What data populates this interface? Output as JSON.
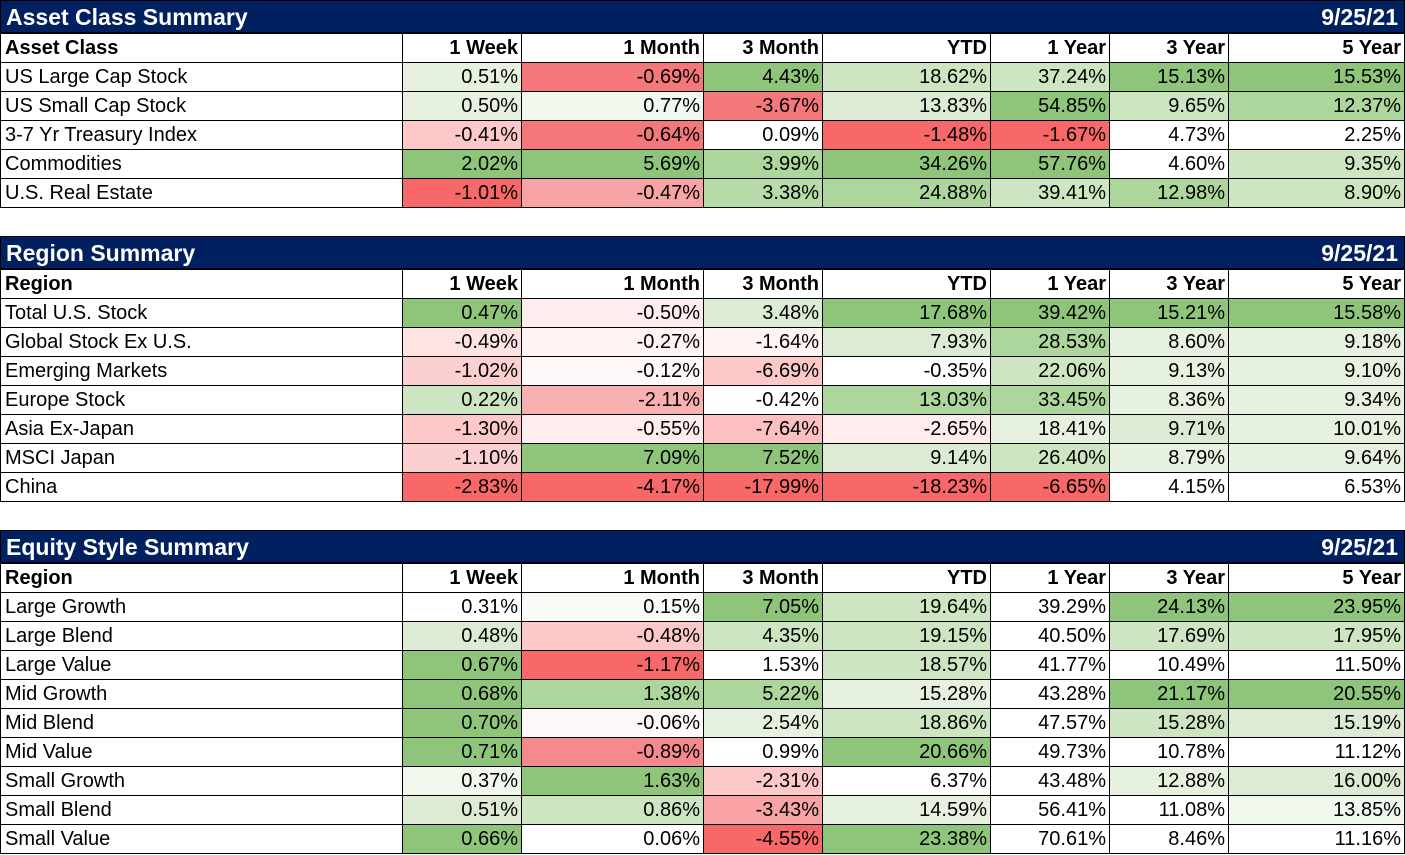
{
  "chart_data": [
    {
      "type": "table",
      "title": "Asset Class Summary",
      "date": "9/25/21",
      "columns": [
        "Asset Class",
        "1 Week",
        "1 Month",
        "3 Month",
        "YTD",
        "1 Year",
        "3 Year",
        "5 Year"
      ],
      "rows": [
        {
          "name": "US Large Cap Stock",
          "values": [
            "0.51%",
            "-0.69%",
            "4.43%",
            "18.62%",
            "37.24%",
            "15.13%",
            "15.53%"
          ],
          "colors": [
            "#e6f1df",
            "#f4777a",
            "#8fc57a",
            "#cde5c1",
            "#cde5c1",
            "#8fc57a",
            "#8fc57a"
          ]
        },
        {
          "name": "US Small Cap Stock",
          "values": [
            "0.50%",
            "0.77%",
            "-3.67%",
            "13.83%",
            "54.85%",
            "9.65%",
            "12.37%"
          ],
          "colors": [
            "#e6f1df",
            "#f0f7ec",
            "#f4777a",
            "#ddebd4",
            "#8fc57a",
            "#cde5c1",
            "#acd69c"
          ]
        },
        {
          "name": "3-7 Yr Treasury Index",
          "values": [
            "-0.41%",
            "-0.64%",
            "0.09%",
            "-1.48%",
            "-1.67%",
            "4.73%",
            "2.25%"
          ],
          "colors": [
            "#fcc8c8",
            "#f4777a",
            "#ffffff",
            "#f86868",
            "#f86868",
            "#ffffff",
            "#ffffff"
          ]
        },
        {
          "name": "Commodities",
          "values": [
            "2.02%",
            "5.69%",
            "3.99%",
            "34.26%",
            "57.76%",
            "4.60%",
            "9.35%"
          ],
          "colors": [
            "#8fc57a",
            "#8fc57a",
            "#acd69c",
            "#8fc57a",
            "#8fc57a",
            "#ffffff",
            "#cde5c1"
          ]
        },
        {
          "name": "U.S. Real Estate",
          "values": [
            "-1.01%",
            "-0.47%",
            "3.38%",
            "24.88%",
            "39.41%",
            "12.98%",
            "8.90%"
          ],
          "colors": [
            "#f86868",
            "#f8a3a4",
            "#b8dca9",
            "#acd69c",
            "#cde5c1",
            "#acd69c",
            "#cde5c1"
          ]
        }
      ]
    },
    {
      "type": "table",
      "title": "Region Summary",
      "date": "9/25/21",
      "columns": [
        "Region",
        "1 Week",
        "1 Month",
        "3 Month",
        "YTD",
        "1 Year",
        "3 Year",
        "5 Year"
      ],
      "rows": [
        {
          "name": "Total U.S. Stock",
          "values": [
            "0.47%",
            "-0.50%",
            "3.48%",
            "17.68%",
            "39.42%",
            "15.21%",
            "15.58%"
          ],
          "colors": [
            "#8fc57a",
            "#ffeded",
            "#ddebd4",
            "#8fc57a",
            "#8fc57a",
            "#8fc57a",
            "#8fc57a"
          ]
        },
        {
          "name": "Global Stock Ex U.S.",
          "values": [
            "-0.49%",
            "-0.27%",
            "-1.64%",
            "7.93%",
            "28.53%",
            "8.60%",
            "9.18%"
          ],
          "colors": [
            "#ffe3e3",
            "#fff3f3",
            "#fff3f3",
            "#ddebd4",
            "#acd69c",
            "#e6f1df",
            "#e6f1df"
          ]
        },
        {
          "name": "Emerging Markets",
          "values": [
            "-1.02%",
            "-0.12%",
            "-6.69%",
            "-0.35%",
            "22.06%",
            "9.13%",
            "9.10%"
          ],
          "colors": [
            "#fcd0d0",
            "#fff8f8",
            "#fcc8c8",
            "#ffffff",
            "#cde5c1",
            "#e6f1df",
            "#e6f1df"
          ]
        },
        {
          "name": "Europe Stock",
          "values": [
            "0.22%",
            "-2.11%",
            "-0.42%",
            "13.03%",
            "33.45%",
            "8.36%",
            "9.34%"
          ],
          "colors": [
            "#cde5c1",
            "#f8b0b0",
            "#ffffff",
            "#acd69c",
            "#acd69c",
            "#e6f1df",
            "#e6f1df"
          ]
        },
        {
          "name": "Asia Ex-Japan",
          "values": [
            "-1.30%",
            "-0.55%",
            "-7.64%",
            "-2.65%",
            "18.41%",
            "9.71%",
            "10.01%"
          ],
          "colors": [
            "#fcc8c8",
            "#ffeded",
            "#fcc0c0",
            "#ffeded",
            "#e6f1df",
            "#ddebd4",
            "#e6f1df"
          ]
        },
        {
          "name": "MSCI Japan",
          "values": [
            "-1.10%",
            "7.09%",
            "7.52%",
            "9.14%",
            "26.40%",
            "8.79%",
            "9.64%"
          ],
          "colors": [
            "#fcd0d0",
            "#8fc57a",
            "#8fc57a",
            "#ddebd4",
            "#cde5c1",
            "#e6f1df",
            "#e6f1df"
          ]
        },
        {
          "name": "China",
          "values": [
            "-2.83%",
            "-4.17%",
            "-17.99%",
            "-18.23%",
            "-6.65%",
            "4.15%",
            "6.53%"
          ],
          "colors": [
            "#f86868",
            "#f86868",
            "#f86868",
            "#f86868",
            "#f86868",
            "#ffffff",
            "#ffffff"
          ]
        }
      ]
    },
    {
      "type": "table",
      "title": "Equity Style Summary",
      "date": "9/25/21",
      "columns": [
        "Region",
        "1 Week",
        "1 Month",
        "3 Month",
        "YTD",
        "1 Year",
        "3 Year",
        "5 Year"
      ],
      "rows": [
        {
          "name": "Large Growth",
          "values": [
            "0.31%",
            "0.15%",
            "7.05%",
            "19.64%",
            "39.29%",
            "24.13%",
            "23.95%"
          ],
          "colors": [
            "#ffffff",
            "#f8fbf6",
            "#8fc57a",
            "#cde5c1",
            "#ffffff",
            "#8fc57a",
            "#8fc57a"
          ]
        },
        {
          "name": "Large Blend",
          "values": [
            "0.48%",
            "-0.48%",
            "4.35%",
            "19.15%",
            "40.50%",
            "17.69%",
            "17.95%"
          ],
          "colors": [
            "#ddebd4",
            "#fcc8c8",
            "#cde5c1",
            "#cde5c1",
            "#ffffff",
            "#cde5c1",
            "#cde5c1"
          ]
        },
        {
          "name": "Large Value",
          "values": [
            "0.67%",
            "-1.17%",
            "1.53%",
            "18.57%",
            "41.77%",
            "10.49%",
            "11.50%"
          ],
          "colors": [
            "#8fc57a",
            "#f86868",
            "#ffffff",
            "#cde5c1",
            "#ffffff",
            "#ffffff",
            "#ffffff"
          ]
        },
        {
          "name": "Mid Growth",
          "values": [
            "0.68%",
            "1.38%",
            "5.22%",
            "15.28%",
            "43.28%",
            "21.17%",
            "20.55%"
          ],
          "colors": [
            "#8fc57a",
            "#acd69c",
            "#acd69c",
            "#e6f1df",
            "#ffffff",
            "#8fc57a",
            "#8fc57a"
          ]
        },
        {
          "name": "Mid Blend",
          "values": [
            "0.70%",
            "-0.06%",
            "2.54%",
            "18.86%",
            "47.57%",
            "15.28%",
            "15.19%"
          ],
          "colors": [
            "#8fc57a",
            "#fff8f8",
            "#e6f1df",
            "#cde5c1",
            "#ffffff",
            "#cde5c1",
            "#ddebd4"
          ]
        },
        {
          "name": "Mid Value",
          "values": [
            "0.71%",
            "-0.89%",
            "0.99%",
            "20.66%",
            "49.73%",
            "10.78%",
            "11.12%"
          ],
          "colors": [
            "#8fc57a",
            "#f48a8c",
            "#ffffff",
            "#8fc57a",
            "#ffffff",
            "#ffffff",
            "#ffffff"
          ]
        },
        {
          "name": "Small Growth",
          "values": [
            "0.37%",
            "1.63%",
            "-2.31%",
            "6.37%",
            "43.48%",
            "12.88%",
            "16.00%"
          ],
          "colors": [
            "#f0f7ec",
            "#8fc57a",
            "#fcc8c8",
            "#ffffff",
            "#ffffff",
            "#e6f1df",
            "#ddebd4"
          ]
        },
        {
          "name": "Small Blend",
          "values": [
            "0.51%",
            "0.86%",
            "-3.43%",
            "14.59%",
            "56.41%",
            "11.08%",
            "13.85%"
          ],
          "colors": [
            "#ddebd4",
            "#cde5c1",
            "#f8a3a4",
            "#e6f1df",
            "#ffffff",
            "#ffffff",
            "#f0f7ec"
          ]
        },
        {
          "name": "Small Value",
          "values": [
            "0.66%",
            "0.06%",
            "-4.55%",
            "23.38%",
            "70.61%",
            "8.46%",
            "11.16%"
          ],
          "colors": [
            "#8fc57a",
            "#ffffff",
            "#f86868",
            "#8fc57a",
            "#ffffff",
            "#ffffff",
            "#ffffff"
          ]
        }
      ]
    }
  ]
}
